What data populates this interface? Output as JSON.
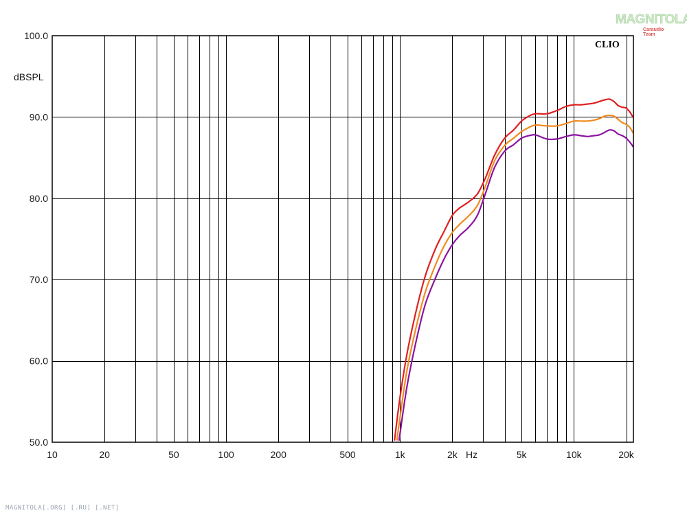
{
  "brand_label": "CLIO",
  "logo": {
    "text": "MAGNITOLA",
    "subtext": "Caraudio Team"
  },
  "footer_text": "MAGNITOLA[.ORG] [.RU] [.NET]",
  "chart_data": {
    "type": "line",
    "title": "",
    "xlabel": "Hz",
    "ylabel": "dBSPL",
    "x_scale": "log",
    "xlim": [
      10,
      22000
    ],
    "ylim": [
      50,
      100
    ],
    "grid": true,
    "x_ticks": [
      10,
      20,
      50,
      100,
      200,
      500,
      1000,
      2000,
      5000,
      10000,
      20000
    ],
    "x_tick_labels": [
      "10",
      "20",
      "50",
      "100",
      "200",
      "500",
      "1k",
      "2k",
      "5k",
      "10k",
      "20k"
    ],
    "y_ticks": [
      50,
      60,
      70,
      80,
      90,
      100
    ],
    "y_tick_labels": [
      "50.0",
      "60.0",
      "70.0",
      "80.0",
      "90.0",
      "100.0"
    ],
    "series": [
      {
        "color": "#e02020",
        "x": [
          930,
          1000,
          1100,
          1250,
          1400,
          1600,
          1800,
          2000,
          2200,
          2500,
          2800,
          3100,
          3500,
          4000,
          4500,
          5000,
          5500,
          6000,
          7000,
          8000,
          9000,
          10000,
          11000,
          12000,
          13000,
          14000,
          15000,
          16000,
          17000,
          18000,
          19000,
          20000,
          21000,
          22000
        ],
        "y": [
          50.2,
          55.5,
          61.0,
          66.5,
          70.5,
          73.8,
          76.0,
          77.9,
          78.8,
          79.6,
          80.6,
          82.5,
          85.3,
          87.4,
          88.4,
          89.5,
          90.1,
          90.4,
          90.4,
          90.8,
          91.3,
          91.5,
          91.5,
          91.6,
          91.7,
          91.9,
          92.1,
          92.2,
          91.9,
          91.4,
          91.2,
          91.1,
          90.6,
          89.9
        ]
      },
      {
        "color": "#f08a1e",
        "x": [
          960,
          1000,
          1100,
          1250,
          1400,
          1600,
          1800,
          2000,
          2200,
          2500,
          2800,
          3100,
          3500,
          4000,
          4500,
          5000,
          5500,
          6000,
          7000,
          8000,
          9000,
          10000,
          11000,
          12000,
          13000,
          14000,
          15000,
          16000,
          17000,
          18000,
          19000,
          20000,
          21000,
          22000
        ],
        "y": [
          50.2,
          53.0,
          59.0,
          64.5,
          68.5,
          71.8,
          74.2,
          75.8,
          76.8,
          77.9,
          79.2,
          81.5,
          84.6,
          86.5,
          87.4,
          88.2,
          88.7,
          89.0,
          88.9,
          88.9,
          89.2,
          89.5,
          89.5,
          89.5,
          89.6,
          89.8,
          90.1,
          90.2,
          90.1,
          89.7,
          89.3,
          89.1,
          88.7,
          88.0
        ]
      },
      {
        "color": "#8a14a0",
        "x": [
          990,
          1000,
          1100,
          1250,
          1400,
          1600,
          1800,
          2000,
          2200,
          2500,
          2800,
          3100,
          3500,
          4000,
          4500,
          5000,
          5500,
          6000,
          7000,
          8000,
          9000,
          10000,
          11000,
          12000,
          13000,
          14000,
          15000,
          16000,
          17000,
          18000,
          19000,
          20000,
          21000,
          22000
        ],
        "y": [
          50.2,
          51.0,
          57.0,
          62.8,
          67.0,
          70.2,
          72.6,
          74.3,
          75.4,
          76.5,
          78.0,
          80.6,
          83.8,
          85.8,
          86.6,
          87.4,
          87.7,
          87.8,
          87.3,
          87.3,
          87.6,
          87.8,
          87.7,
          87.6,
          87.7,
          87.8,
          88.1,
          88.4,
          88.3,
          87.9,
          87.7,
          87.4,
          86.9,
          86.3
        ]
      }
    ]
  }
}
